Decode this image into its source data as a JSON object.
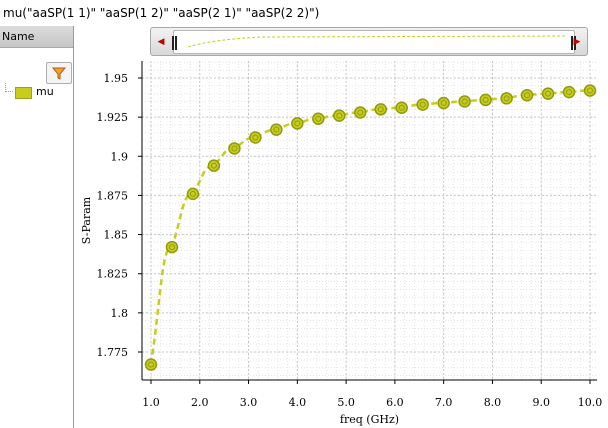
{
  "window": {
    "expression_title": "mu(\"aaSP(1 1)\" \"aaSP(1 2)\" \"aaSP(2 1)\" \"aaSP(2 2)\")"
  },
  "panel": {
    "header": "Name",
    "legend_items": [
      {
        "label": "mu",
        "color": "#c7cd1a"
      }
    ]
  },
  "overview": {
    "left_arrow": "◀",
    "right_arrow": "▶"
  },
  "chart_data": {
    "type": "line",
    "xlabel": "freq (GHz)",
    "ylabel": "S-Param",
    "xlim": [
      1.0,
      10.0
    ],
    "ylim": [
      1.75,
      1.965
    ],
    "x_ticks": [
      "1.0",
      "2.0",
      "3.0",
      "4.0",
      "5.0",
      "6.0",
      "7.0",
      "8.0",
      "9.0",
      "10.0"
    ],
    "y_ticks": [
      "1.775",
      "1.8",
      "1.825",
      "1.85",
      "1.875",
      "1.9",
      "1.925",
      "1.95"
    ],
    "grid": true,
    "series": [
      {
        "name": "mu",
        "color": "#c7cd1a",
        "marker_color": "#8f9a10",
        "x": [
          1.0,
          1.43,
          1.86,
          2.29,
          2.71,
          3.14,
          3.57,
          4.0,
          4.43,
          4.86,
          5.29,
          5.71,
          6.14,
          6.57,
          7.0,
          7.43,
          7.86,
          8.29,
          8.71,
          9.14,
          9.57,
          10.0
        ],
        "y": [
          1.767,
          1.842,
          1.876,
          1.894,
          1.905,
          1.912,
          1.917,
          1.921,
          1.924,
          1.926,
          1.928,
          1.93,
          1.931,
          1.933,
          1.934,
          1.935,
          1.936,
          1.937,
          1.939,
          1.94,
          1.941,
          1.942
        ]
      }
    ]
  }
}
